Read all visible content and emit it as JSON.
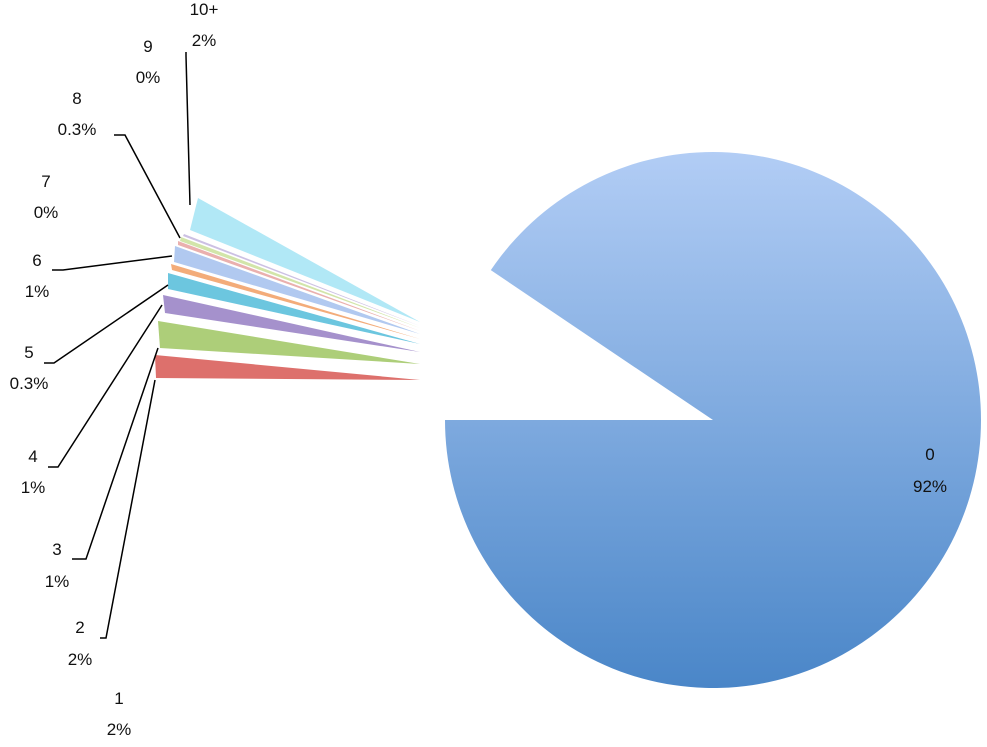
{
  "chart_data": {
    "type": "pie",
    "title": "",
    "exploded": true,
    "slices": [
      {
        "category": "0",
        "percent_label": "92%",
        "value": 92,
        "color": "#6f9fd8"
      },
      {
        "category": "1",
        "percent_label": "2%",
        "value": 2,
        "color": "#d9605c"
      },
      {
        "category": "2",
        "percent_label": "2%",
        "value": 2,
        "color": "#a4c96a"
      },
      {
        "category": "3",
        "percent_label": "1%",
        "value": 1,
        "color": "#9b85c7"
      },
      {
        "category": "4",
        "percent_label": "1%",
        "value": 1,
        "color": "#5cc0dc"
      },
      {
        "category": "5",
        "percent_label": "0.3%",
        "value": 0.3,
        "color": "#f2a36b"
      },
      {
        "category": "6",
        "percent_label": "1%",
        "value": 1,
        "color": "#a9c3ee"
      },
      {
        "category": "7",
        "percent_label": "0%",
        "value": 0,
        "color": "#e8a7a5"
      },
      {
        "category": "8",
        "percent_label": "0.3%",
        "value": 0.3,
        "color": "#cde2a0"
      },
      {
        "category": "9",
        "percent_label": "0%",
        "value": 0,
        "color": "#c6b9e0"
      },
      {
        "category": "10+",
        "percent_label": "2%",
        "value": 2,
        "color": "#a9e6f5"
      }
    ]
  }
}
